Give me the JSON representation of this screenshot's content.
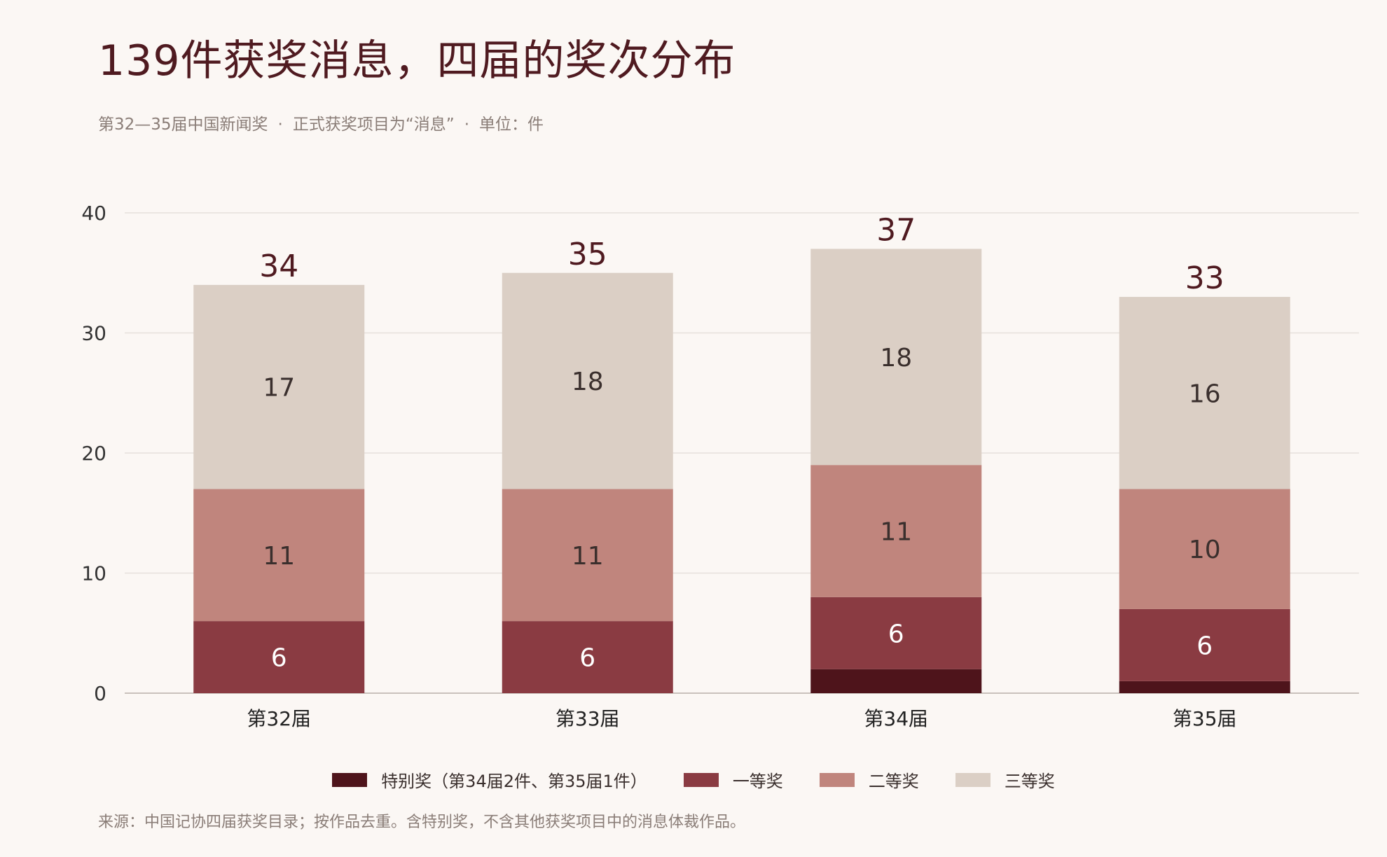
{
  "title": "139件获奖消息，四届的奖次分布",
  "subtitle": {
    "part1": "第32—35届中国新闻奖",
    "part2": "正式获奖项目为“消息”",
    "part3": "单位：件",
    "separator": "·"
  },
  "source": "来源：中国记协四届获奖目录；按作品去重。含特别奖，不含其他获奖项目中的消息体裁作品。",
  "colors": {
    "special": "#4e141b",
    "first": "#8a3b42",
    "second": "#c0857d",
    "third": "#dbcfc5",
    "title": "#4f1a20",
    "grid": "#e6e0dc",
    "axis": "#c9c1bc"
  },
  "chart_data": {
    "type": "bar",
    "stacked": true,
    "categories": [
      "第32届",
      "第33届",
      "第34届",
      "第35届"
    ],
    "series": [
      {
        "name": "特别奖（第34届2件、第35届1件）",
        "key": "special",
        "values": [
          0,
          0,
          2,
          1
        ]
      },
      {
        "name": "一等奖",
        "key": "first",
        "values": [
          6,
          6,
          6,
          6
        ]
      },
      {
        "name": "二等奖",
        "key": "second",
        "values": [
          11,
          11,
          11,
          10
        ]
      },
      {
        "name": "三等奖",
        "key": "third",
        "values": [
          17,
          18,
          18,
          16
        ]
      }
    ],
    "totals": [
      34,
      35,
      37,
      33
    ],
    "ylim": [
      0,
      40
    ],
    "yticks": [
      0,
      10,
      20,
      30,
      40
    ],
    "grid": true,
    "legend_position": "bottom"
  }
}
